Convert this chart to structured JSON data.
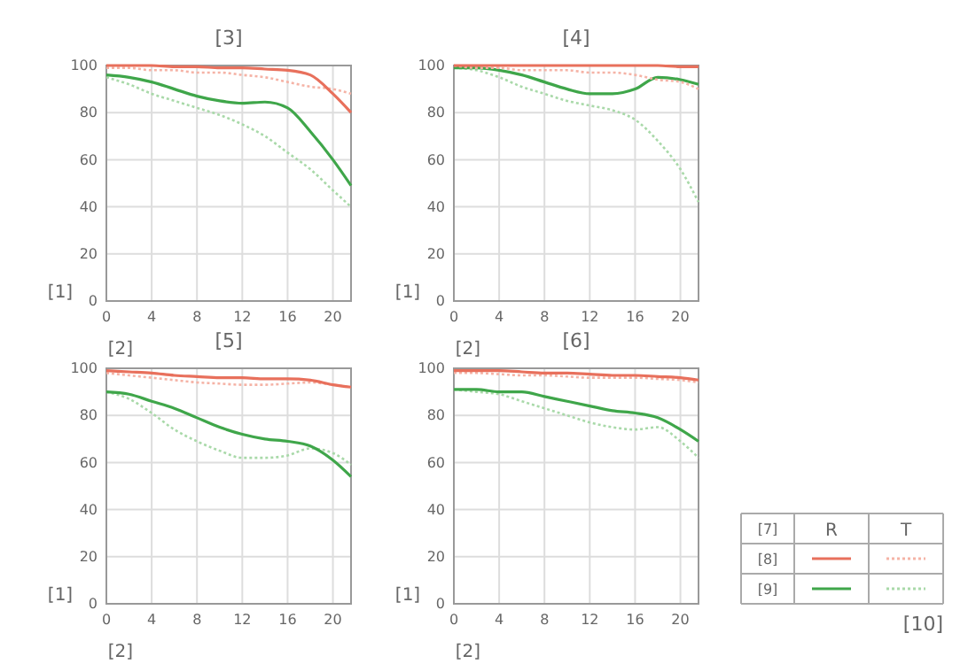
{
  "chart_data": [
    {
      "type": "line",
      "title": "[3]",
      "xlabel": "[2]",
      "ylabel": "[1]",
      "x": [
        0,
        2,
        4,
        6,
        8,
        10,
        12,
        14,
        16,
        18,
        20,
        21.6
      ],
      "xlim": [
        0,
        21.6
      ],
      "xticks": [
        0,
        4,
        8,
        12,
        16,
        20
      ],
      "ylim": [
        0,
        100
      ],
      "yticks": [
        0,
        20,
        40,
        60,
        80,
        100
      ],
      "grid": true,
      "series": [
        {
          "color": "#e8705c",
          "line_style": "solid",
          "values": [
            100,
            100,
            100,
            99.5,
            99.5,
            99,
            99,
            98.5,
            98,
            96,
            88,
            80
          ]
        },
        {
          "color": "#f5b3a6",
          "line_style": "dotted",
          "values": [
            99,
            99,
            98,
            98,
            97,
            97,
            96,
            95,
            93,
            91,
            90,
            88
          ]
        },
        {
          "color": "#3fa64a",
          "line_style": "solid",
          "values": [
            96,
            95,
            93,
            90,
            87,
            85,
            84,
            84.5,
            82,
            72,
            60,
            49
          ]
        },
        {
          "color": "#a9d9a9",
          "line_style": "dotted",
          "values": [
            95,
            92,
            88,
            85,
            82,
            79,
            75,
            70,
            63,
            56,
            47,
            40
          ]
        }
      ]
    },
    {
      "type": "line",
      "title": "[4]",
      "xlabel": "[2]",
      "ylabel": "[1]",
      "x": [
        0,
        2,
        4,
        6,
        8,
        10,
        12,
        14,
        16,
        18,
        20,
        21.6
      ],
      "xlim": [
        0,
        21.6
      ],
      "xticks": [
        0,
        4,
        8,
        12,
        16,
        20
      ],
      "ylim": [
        0,
        100
      ],
      "yticks": [
        0,
        20,
        40,
        60,
        80,
        100
      ],
      "grid": true,
      "series": [
        {
          "color": "#e8705c",
          "line_style": "solid",
          "values": [
            100,
            100,
            100,
            100,
            100,
            100,
            100,
            100,
            100,
            100,
            99.5,
            99.5
          ]
        },
        {
          "color": "#f5b3a6",
          "line_style": "dotted",
          "values": [
            100,
            99,
            99,
            98,
            98,
            98,
            97,
            97,
            96,
            94,
            93,
            90
          ]
        },
        {
          "color": "#3fa64a",
          "line_style": "solid",
          "values": [
            99,
            99,
            98,
            96,
            93,
            90,
            88,
            88,
            90,
            95,
            94,
            92
          ]
        },
        {
          "color": "#a9d9a9",
          "line_style": "dotted",
          "values": [
            99,
            98,
            95,
            91,
            88,
            85,
            83,
            81,
            77,
            68,
            56,
            42
          ]
        }
      ]
    },
    {
      "type": "line",
      "title": "[5]",
      "xlabel": "[2]",
      "ylabel": "[1]",
      "x": [
        0,
        2,
        4,
        6,
        8,
        10,
        12,
        14,
        16,
        18,
        20,
        21.6
      ],
      "xlim": [
        0,
        21.6
      ],
      "xticks": [
        0,
        4,
        8,
        12,
        16,
        20
      ],
      "ylim": [
        0,
        100
      ],
      "yticks": [
        0,
        20,
        40,
        60,
        80,
        100
      ],
      "grid": true,
      "series": [
        {
          "color": "#e8705c",
          "line_style": "solid",
          "values": [
            99,
            98.5,
            98,
            97,
            96.5,
            96,
            96,
            95.5,
            95.5,
            95,
            93,
            92
          ]
        },
        {
          "color": "#f5b3a6",
          "line_style": "dotted",
          "values": [
            98,
            97,
            96,
            95,
            94,
            93.5,
            93,
            93,
            93.5,
            94,
            93,
            92
          ]
        },
        {
          "color": "#3fa64a",
          "line_style": "solid",
          "values": [
            90,
            89,
            86,
            83,
            79,
            75,
            72,
            70,
            69,
            67,
            61,
            54
          ]
        },
        {
          "color": "#a9d9a9",
          "line_style": "dotted",
          "values": [
            90,
            87,
            81,
            74,
            69,
            65,
            62,
            62,
            63,
            66,
            64,
            59
          ]
        }
      ]
    },
    {
      "type": "line",
      "title": "[6]",
      "xlabel": "[2]",
      "ylabel": "[1]",
      "x": [
        0,
        2,
        4,
        6,
        8,
        10,
        12,
        14,
        16,
        18,
        20,
        21.6
      ],
      "xlim": [
        0,
        21.6
      ],
      "xticks": [
        0,
        4,
        8,
        12,
        16,
        20
      ],
      "ylim": [
        0,
        100
      ],
      "yticks": [
        0,
        20,
        40,
        60,
        80,
        100
      ],
      "grid": true,
      "series": [
        {
          "color": "#e8705c",
          "line_style": "solid",
          "values": [
            99,
            99,
            99,
            98.5,
            98,
            98,
            97.5,
            97,
            97,
            96.5,
            96,
            95
          ]
        },
        {
          "color": "#f5b3a6",
          "line_style": "dotted",
          "values": [
            98,
            98,
            97.5,
            97,
            97,
            96.5,
            96,
            96,
            96,
            95.5,
            95,
            94
          ]
        },
        {
          "color": "#3fa64a",
          "line_style": "solid",
          "values": [
            91,
            91,
            90,
            90,
            88,
            86,
            84,
            82,
            81,
            79,
            74,
            69
          ]
        },
        {
          "color": "#a9d9a9",
          "line_style": "dotted",
          "values": [
            91,
            90,
            89,
            86,
            83,
            80,
            77,
            75,
            74,
            75,
            69,
            62
          ]
        }
      ]
    },
    {
      "type": "other",
      "legend_title": "[7]",
      "categories": [
        "R",
        "T"
      ],
      "y_categories": [
        "[8]",
        "[9]"
      ],
      "annotations": [
        "[10]"
      ]
    }
  ]
}
